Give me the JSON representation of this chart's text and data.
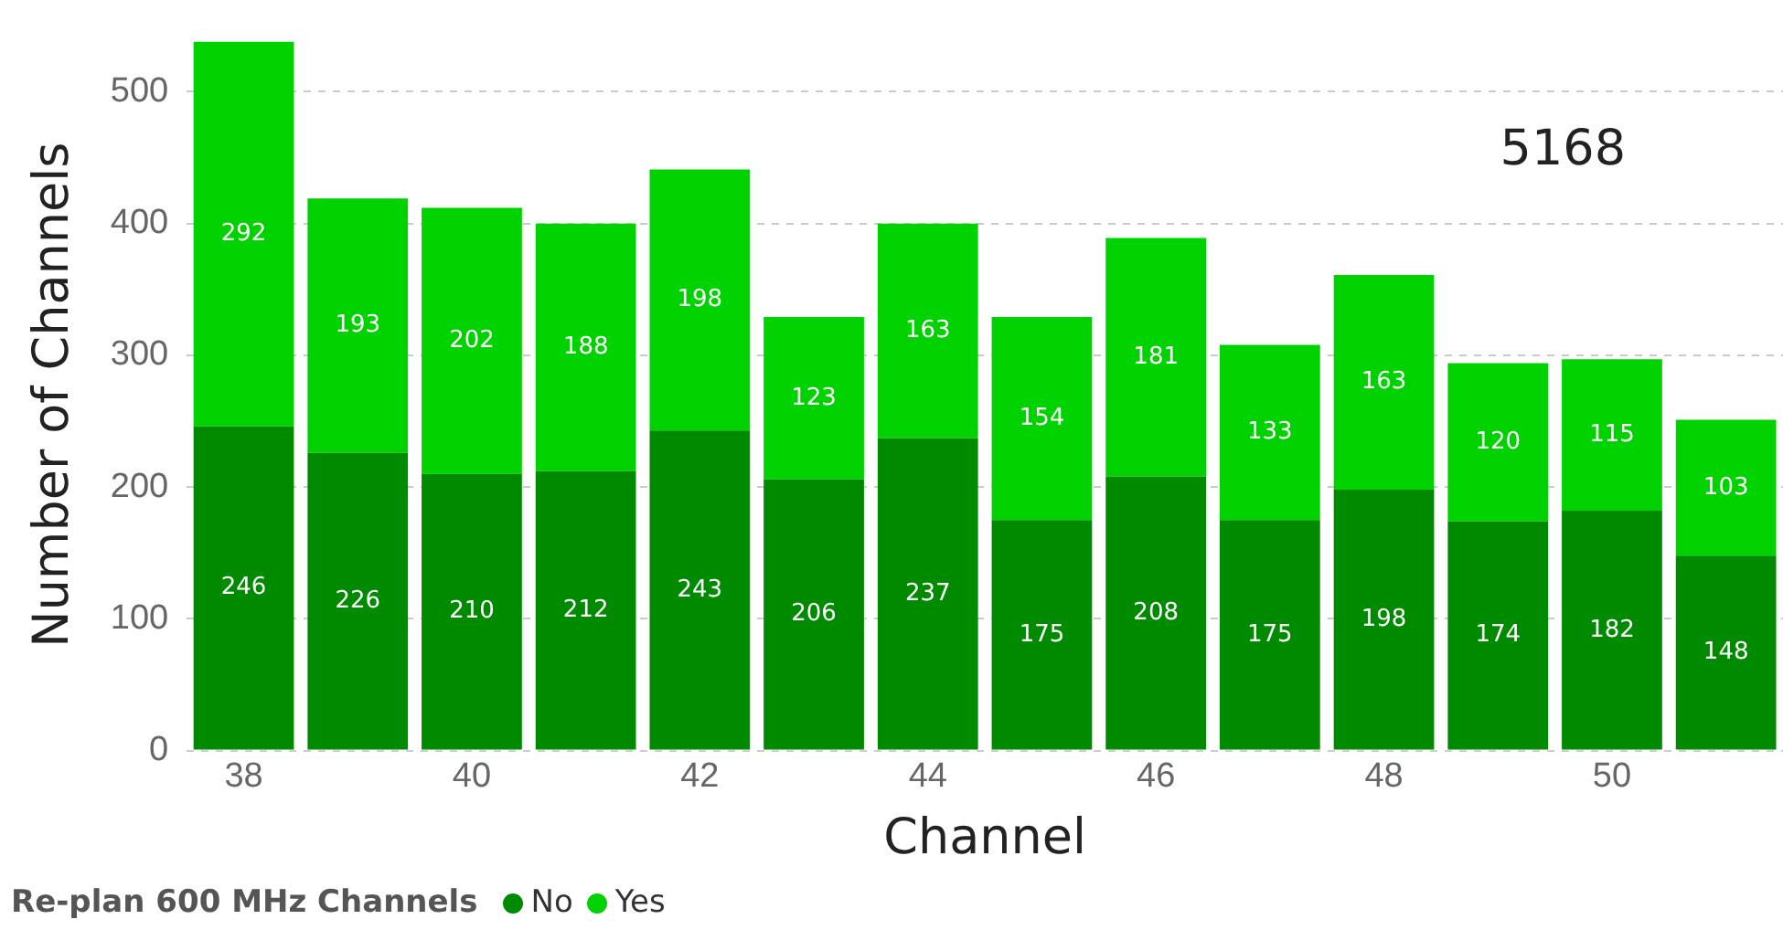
{
  "chart_data": {
    "type": "bar",
    "stacked": true,
    "xlabel": "Channel",
    "ylabel": "Number of Channels",
    "legend_title": "Re-plan 600 MHz Channels",
    "legend": "bottom left",
    "grid": "y",
    "data_labels": true,
    "categories": [
      "38",
      null,
      "40",
      null,
      "42",
      null,
      "44",
      null,
      "46",
      null,
      "48",
      null,
      "50",
      null
    ],
    "ylim": [
      0,
      540
    ],
    "yticks": [
      0,
      100,
      200,
      300,
      400,
      500
    ],
    "series": [
      {
        "name": "No",
        "color": "#008a00",
        "values": [
          246,
          226,
          210,
          212,
          243,
          206,
          237,
          175,
          208,
          175,
          198,
          174,
          182,
          148
        ]
      },
      {
        "name": "Yes",
        "color": "#00d200",
        "values": [
          292,
          193,
          202,
          188,
          198,
          123,
          163,
          154,
          181,
          133,
          163,
          120,
          115,
          103
        ]
      }
    ],
    "annotations": [
      "5168"
    ]
  }
}
